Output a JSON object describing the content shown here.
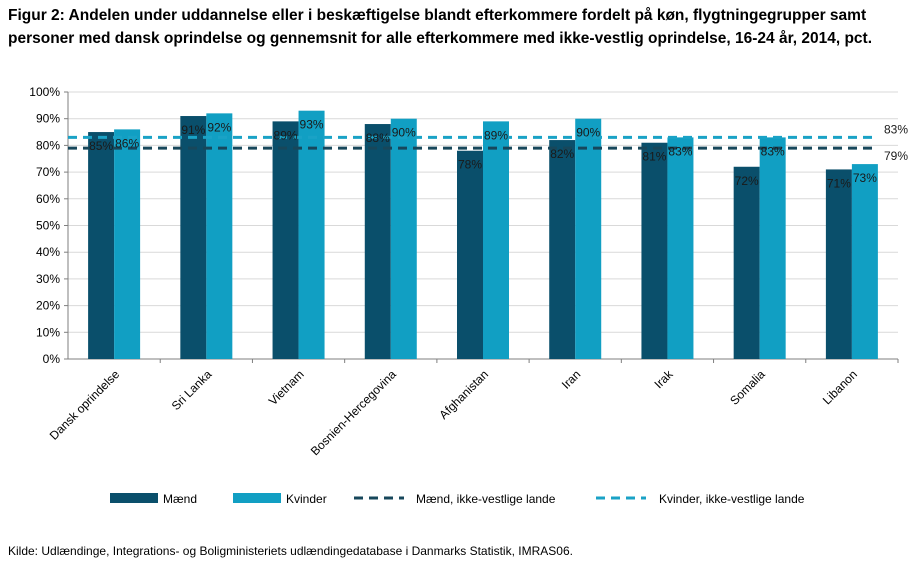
{
  "title": "Figur 2: Andelen under uddannelse eller i beskæftigelse blandt efterkommere fordelt på køn, flygtningegrupper samt personer med dansk oprindelse og gennemsnit for alle efterkommere med ikke-vestlig oprindelse, 16-24 år, 2014, pct.",
  "source": "Kilde: Udlændinge, Integrations- og Boligministeriets udlændingedatabase i Danmarks Statistik, IMRAS06.",
  "colors": {
    "maend": "#0a4f6b",
    "kvinder": "#119fc3",
    "ref_maend": "#17475b",
    "ref_kvinder": "#1aa2c6",
    "grid": "#d9d9d9"
  },
  "chart_data": {
    "type": "bar",
    "categories": [
      "Dansk oprindelse",
      "Sri Lanka",
      "Vietnam",
      "Bosnien-Hercegovina",
      "Afghanistan",
      "Iran",
      "Irak",
      "Somalia",
      "Libanon"
    ],
    "series": [
      {
        "name": "Mænd",
        "values": [
          85,
          91,
          89,
          88,
          78,
          82,
          81,
          72,
          71
        ],
        "labels": [
          "85%",
          "91%",
          "89%",
          "88%",
          "78%",
          "82%",
          "81%",
          "72%",
          "71%"
        ]
      },
      {
        "name": "Kvinder",
        "values": [
          86,
          92,
          93,
          90,
          89,
          90,
          83,
          83,
          73
        ],
        "labels": [
          "86%",
          "92%",
          "93%",
          "90%",
          "89%",
          "90%",
          "83%",
          "83%",
          "73%"
        ]
      }
    ],
    "reference_lines": [
      {
        "name": "Mænd, ikke-vestlige lande",
        "value": 79,
        "label": "79%"
      },
      {
        "name": "Kvinder, ikke-vestlige lande",
        "value": 83,
        "label": "83%"
      }
    ],
    "yticks": [
      "0%",
      "10%",
      "20%",
      "30%",
      "40%",
      "50%",
      "60%",
      "70%",
      "80%",
      "90%",
      "100%"
    ],
    "ylim": [
      0,
      100
    ],
    "xlabel": "",
    "ylabel": "",
    "legend": [
      "Mænd",
      "Kvinder",
      "Mænd, ikke-vestlige lande",
      "Kvinder, ikke-vestlige lande"
    ],
    "grid": true
  }
}
